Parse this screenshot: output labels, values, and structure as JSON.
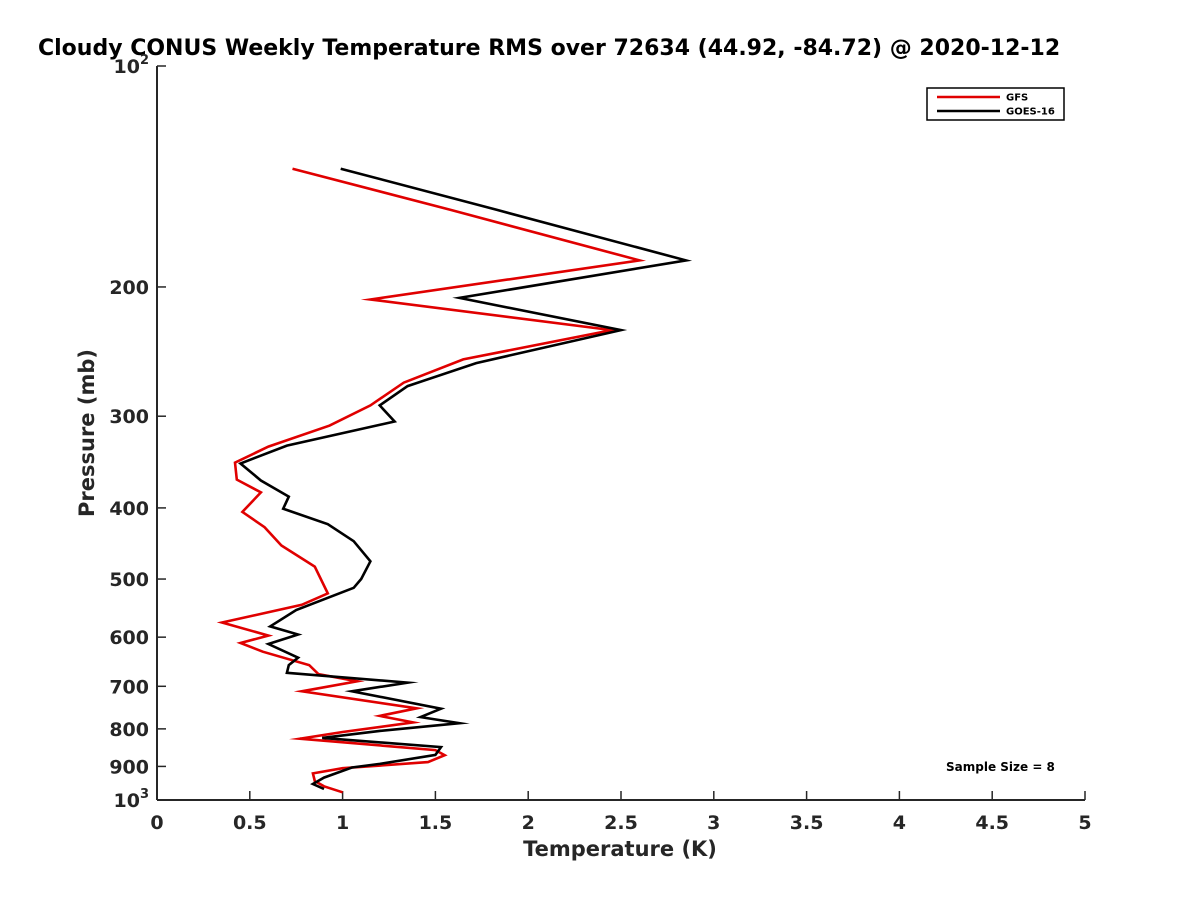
{
  "chart_data": {
    "type": "line",
    "title": "Cloudy CONUS Weekly Temperature RMS over 72634 (44.92, -84.72) @ 2020-12-12",
    "xlabel": "Temperature (K)",
    "ylabel": "Pressure (mb)",
    "xlim": [
      0,
      5
    ],
    "ylim": [
      1000,
      100
    ],
    "y_scale": "log",
    "y_reversed": true,
    "x_ticks": [
      "0",
      "0.5",
      "1",
      "1.5",
      "2",
      "2.5",
      "3",
      "3.5",
      "4",
      "4.5",
      "5"
    ],
    "y_ticks": [
      {
        "value": 100,
        "label": "10",
        "sup": "2"
      },
      {
        "value": 200,
        "label": "200",
        "sup": ""
      },
      {
        "value": 300,
        "label": "300",
        "sup": ""
      },
      {
        "value": 400,
        "label": "400",
        "sup": ""
      },
      {
        "value": 500,
        "label": "500",
        "sup": ""
      },
      {
        "value": 600,
        "label": "600",
        "sup": ""
      },
      {
        "value": 700,
        "label": "700",
        "sup": ""
      },
      {
        "value": 800,
        "label": "800",
        "sup": ""
      },
      {
        "value": 900,
        "label": "900",
        "sup": ""
      },
      {
        "value": 1000,
        "label": "10",
        "sup": "3"
      }
    ],
    "grid": false,
    "legend_position": "top-right",
    "annotation": "Sample Size = 8",
    "series": [
      {
        "name": "GFS",
        "color": "#e00000",
        "points": [
          [
            0.73,
            138
          ],
          [
            1.58,
            157
          ],
          [
            2.6,
            184
          ],
          [
            1.15,
            208
          ],
          [
            2.45,
            229
          ],
          [
            1.65,
            251
          ],
          [
            1.33,
            270
          ],
          [
            1.15,
            290
          ],
          [
            0.93,
            309
          ],
          [
            0.6,
            330
          ],
          [
            0.42,
            347
          ],
          [
            0.43,
            366
          ],
          [
            0.56,
            381
          ],
          [
            0.46,
            405
          ],
          [
            0.58,
            425
          ],
          [
            0.67,
            450
          ],
          [
            0.85,
            481
          ],
          [
            0.92,
            523
          ],
          [
            0.78,
            542
          ],
          [
            0.35,
            573
          ],
          [
            0.6,
            597
          ],
          [
            0.45,
            611
          ],
          [
            0.57,
            628
          ],
          [
            0.82,
            655
          ],
          [
            0.87,
            674
          ],
          [
            1.08,
            689
          ],
          [
            0.78,
            711
          ],
          [
            1.4,
            750
          ],
          [
            1.2,
            768
          ],
          [
            1.38,
            784
          ],
          [
            1.0,
            808
          ],
          [
            0.77,
            825
          ],
          [
            1.5,
            855
          ],
          [
            1.55,
            869
          ],
          [
            1.46,
            888
          ],
          [
            1.0,
            905
          ],
          [
            0.84,
            920
          ],
          [
            0.85,
            942
          ],
          [
            0.9,
            958
          ],
          [
            1.0,
            976
          ]
        ]
      },
      {
        "name": "GOES-16",
        "color": "#000000",
        "points": [
          [
            0.99,
            138
          ],
          [
            1.83,
            157
          ],
          [
            2.85,
            184
          ],
          [
            1.63,
            207
          ],
          [
            2.5,
            229
          ],
          [
            1.72,
            254
          ],
          [
            1.35,
            273
          ],
          [
            1.2,
            290
          ],
          [
            1.28,
            305
          ],
          [
            0.7,
            329
          ],
          [
            0.45,
            348
          ],
          [
            0.56,
            367
          ],
          [
            0.71,
            386
          ],
          [
            0.68,
            401
          ],
          [
            0.92,
            421
          ],
          [
            1.06,
            444
          ],
          [
            1.15,
            473
          ],
          [
            1.1,
            500
          ],
          [
            1.06,
            514
          ],
          [
            0.75,
            551
          ],
          [
            0.61,
            580
          ],
          [
            0.76,
            595
          ],
          [
            0.6,
            613
          ],
          [
            0.76,
            640
          ],
          [
            0.71,
            655
          ],
          [
            0.7,
            671
          ],
          [
            1.35,
            692
          ],
          [
            1.05,
            711
          ],
          [
            1.53,
            751
          ],
          [
            1.42,
            771
          ],
          [
            1.63,
            786
          ],
          [
            1.2,
            805
          ],
          [
            0.89,
            823
          ],
          [
            1.53,
            847
          ],
          [
            1.5,
            868
          ],
          [
            1.2,
            893
          ],
          [
            1.05,
            903
          ],
          [
            0.9,
            932
          ],
          [
            0.84,
            951
          ],
          [
            0.9,
            966
          ]
        ]
      }
    ]
  }
}
